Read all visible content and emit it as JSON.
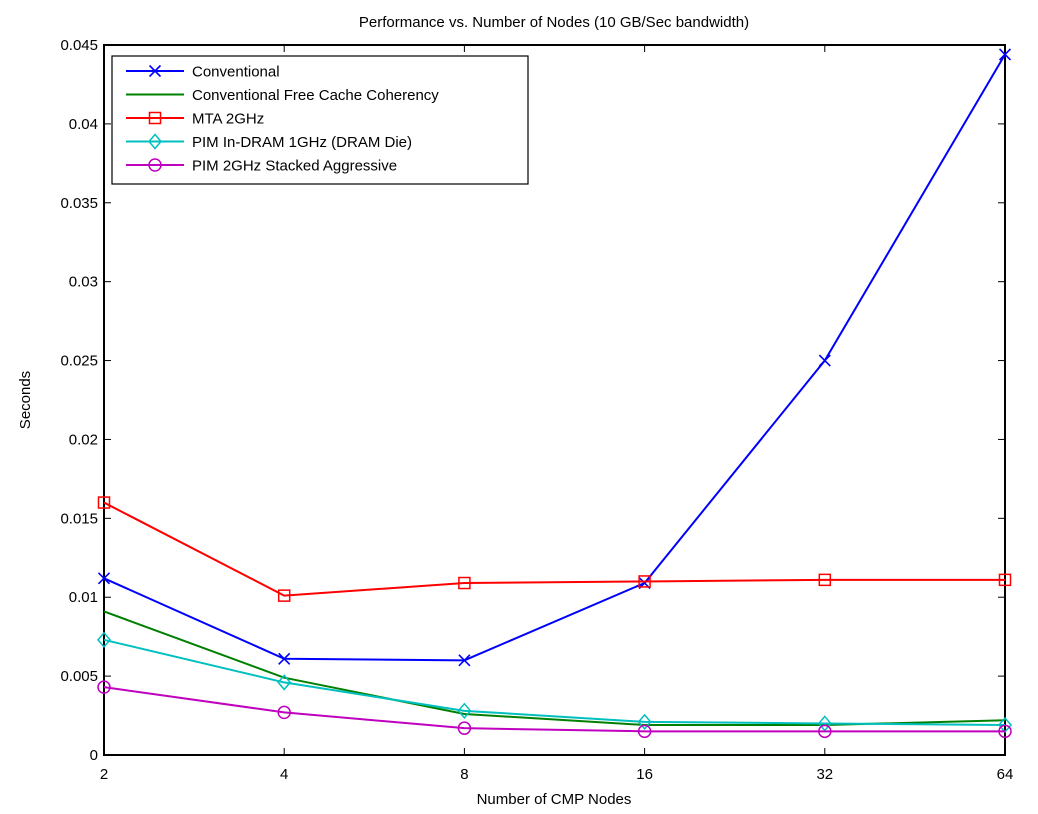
{
  "chart_data": {
    "type": "line",
    "title": "Performance vs. Number of Nodes (10 GB/Sec bandwidth)",
    "xlabel": "Number of CMP Nodes",
    "ylabel": "Seconds",
    "categories": [
      "2",
      "4",
      "8",
      "16",
      "32",
      "64"
    ],
    "x_scale": "categorical (log2)",
    "ylim": [
      0,
      0.045
    ],
    "yticks": [
      "0",
      "0.005",
      "0.01",
      "0.015",
      "0.02",
      "0.025",
      "0.03",
      "0.035",
      "0.04",
      "0.045"
    ],
    "grid": false,
    "legend_position": "upper left",
    "series": [
      {
        "name": "Conventional",
        "color": "#0000ff",
        "marker": "x",
        "values": [
          0.0112,
          0.0061,
          0.006,
          0.0109,
          0.025,
          0.0444
        ]
      },
      {
        "name": "Conventional Free Cache Coherency",
        "color": "#008000",
        "marker": "none",
        "values": [
          0.0091,
          0.0049,
          0.0026,
          0.0019,
          0.0019,
          0.0022
        ]
      },
      {
        "name": "MTA 2GHz",
        "color": "#ff0000",
        "marker": "square",
        "values": [
          0.016,
          0.0101,
          0.0109,
          0.011,
          0.0111,
          0.0111
        ]
      },
      {
        "name": "PIM In-DRAM 1GHz (DRAM Die)",
        "color": "#00bfbf",
        "marker": "diamond",
        "values": [
          0.0073,
          0.0046,
          0.0028,
          0.0021,
          0.002,
          0.0019
        ]
      },
      {
        "name": "PIM 2GHz Stacked Aggressive",
        "color": "#bf00bf",
        "marker": "circle",
        "values": [
          0.0043,
          0.0027,
          0.0017,
          0.0015,
          0.0015,
          0.0015
        ]
      }
    ]
  }
}
